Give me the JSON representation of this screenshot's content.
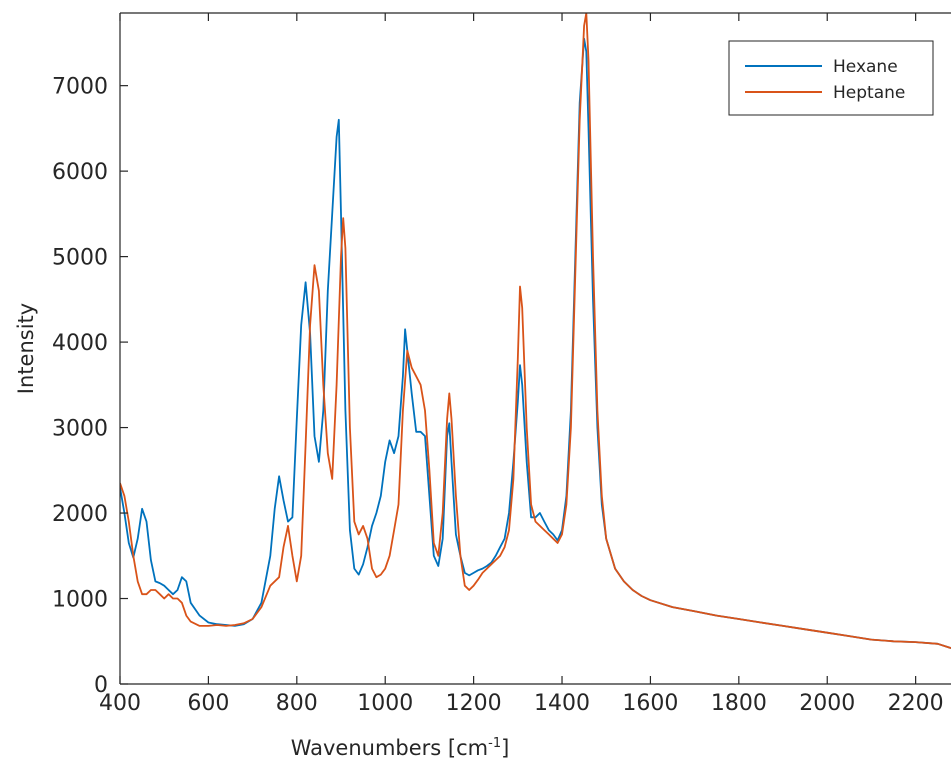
{
  "chart_data": {
    "type": "line",
    "xlabel": "Wavenumbers [cm",
    "xlabel_sup": "-1",
    "xlabel_suffix": "]",
    "ylabel": "Intensity",
    "xlim": [
      400,
      2280
    ],
    "ylim": [
      0,
      7850
    ],
    "xticks": [
      400,
      600,
      800,
      1000,
      1200,
      1400,
      1600,
      1800,
      2000,
      2200
    ],
    "yticks": [
      0,
      1000,
      2000,
      3000,
      4000,
      5000,
      6000,
      7000
    ],
    "grid": false,
    "legend_position": "top-right",
    "series": [
      {
        "name": "Hexane",
        "color": "#0072BD",
        "x": [
          400,
          410,
          420,
          430,
          440,
          450,
          460,
          470,
          480,
          490,
          500,
          510,
          520,
          530,
          540,
          550,
          560,
          580,
          600,
          620,
          640,
          660,
          680,
          700,
          720,
          740,
          750,
          760,
          770,
          780,
          790,
          800,
          810,
          820,
          830,
          840,
          850,
          860,
          870,
          880,
          890,
          895,
          900,
          910,
          920,
          930,
          940,
          950,
          960,
          970,
          980,
          990,
          1000,
          1010,
          1020,
          1030,
          1040,
          1045,
          1050,
          1060,
          1070,
          1080,
          1090,
          1100,
          1110,
          1120,
          1130,
          1140,
          1145,
          1150,
          1160,
          1170,
          1180,
          1190,
          1200,
          1210,
          1220,
          1230,
          1240,
          1250,
          1260,
          1270,
          1280,
          1290,
          1300,
          1305,
          1310,
          1320,
          1330,
          1340,
          1350,
          1360,
          1370,
          1380,
          1390,
          1400,
          1410,
          1420,
          1430,
          1440,
          1450,
          1455,
          1460,
          1470,
          1480,
          1490,
          1500,
          1520,
          1540,
          1560,
          1580,
          1600,
          1650,
          1700,
          1750,
          1800,
          1850,
          1900,
          1950,
          2000,
          2050,
          2100,
          2150,
          2200,
          2250,
          2280
        ],
        "y": [
          2300,
          2000,
          1650,
          1480,
          1700,
          2050,
          1900,
          1450,
          1200,
          1180,
          1150,
          1100,
          1050,
          1100,
          1250,
          1200,
          950,
          800,
          720,
          700,
          690,
          680,
          700,
          760,
          950,
          1500,
          2050,
          2430,
          2150,
          1900,
          1950,
          3100,
          4200,
          4700,
          4100,
          2900,
          2600,
          3200,
          4600,
          5500,
          6400,
          6600,
          5500,
          3200,
          1800,
          1350,
          1280,
          1400,
          1600,
          1850,
          2000,
          2200,
          2600,
          2850,
          2700,
          2900,
          3600,
          4150,
          3900,
          3400,
          2950,
          2950,
          2900,
          2200,
          1500,
          1380,
          1700,
          2900,
          3050,
          2600,
          1750,
          1500,
          1300,
          1270,
          1300,
          1330,
          1350,
          1380,
          1420,
          1500,
          1600,
          1700,
          2000,
          2600,
          3300,
          3730,
          3500,
          2600,
          1950,
          1950,
          2000,
          1900,
          1800,
          1750,
          1680,
          1800,
          2200,
          3200,
          5000,
          6800,
          7550,
          7400,
          6500,
          4500,
          3000,
          2100,
          1700,
          1350,
          1200,
          1100,
          1030,
          980,
          900,
          850,
          800,
          760,
          720,
          680,
          640,
          600,
          560,
          520,
          500,
          490,
          470,
          420
        ]
      },
      {
        "name": "Heptane",
        "color": "#D95319",
        "x": [
          400,
          410,
          420,
          430,
          440,
          450,
          460,
          470,
          480,
          490,
          500,
          510,
          520,
          530,
          540,
          550,
          560,
          580,
          600,
          620,
          640,
          660,
          680,
          700,
          720,
          740,
          760,
          770,
          780,
          790,
          800,
          810,
          820,
          830,
          840,
          850,
          860,
          870,
          880,
          890,
          900,
          905,
          910,
          920,
          930,
          940,
          950,
          960,
          970,
          980,
          990,
          1000,
          1010,
          1020,
          1030,
          1040,
          1050,
          1060,
          1070,
          1080,
          1090,
          1100,
          1110,
          1120,
          1130,
          1140,
          1145,
          1150,
          1160,
          1170,
          1180,
          1190,
          1200,
          1210,
          1220,
          1230,
          1240,
          1250,
          1260,
          1270,
          1280,
          1290,
          1300,
          1305,
          1310,
          1320,
          1330,
          1340,
          1350,
          1360,
          1370,
          1380,
          1390,
          1400,
          1410,
          1420,
          1430,
          1440,
          1450,
          1455,
          1460,
          1470,
          1480,
          1490,
          1500,
          1520,
          1540,
          1560,
          1580,
          1600,
          1650,
          1700,
          1750,
          1800,
          1850,
          1900,
          1950,
          2000,
          2050,
          2100,
          2150,
          2200,
          2250,
          2280
        ],
        "y": [
          2350,
          2200,
          1900,
          1500,
          1200,
          1050,
          1050,
          1100,
          1100,
          1050,
          1000,
          1050,
          1000,
          1000,
          950,
          800,
          730,
          680,
          680,
          690,
          680,
          690,
          710,
          760,
          900,
          1150,
          1250,
          1600,
          1850,
          1500,
          1200,
          1500,
          2800,
          4200,
          4900,
          4600,
          3500,
          2700,
          2400,
          3500,
          5000,
          5450,
          5100,
          3000,
          1900,
          1750,
          1850,
          1700,
          1350,
          1250,
          1280,
          1350,
          1500,
          1800,
          2100,
          3200,
          3900,
          3700,
          3600,
          3500,
          3200,
          2500,
          1650,
          1500,
          2000,
          3100,
          3400,
          3100,
          2200,
          1500,
          1150,
          1100,
          1150,
          1220,
          1300,
          1350,
          1400,
          1450,
          1500,
          1600,
          1800,
          2400,
          3800,
          4650,
          4400,
          3000,
          2100,
          1900,
          1850,
          1800,
          1750,
          1700,
          1650,
          1750,
          2100,
          3000,
          4800,
          6600,
          7700,
          7850,
          7300,
          5000,
          3200,
          2200,
          1700,
          1350,
          1200,
          1100,
          1030,
          980,
          900,
          850,
          800,
          760,
          720,
          680,
          640,
          600,
          560,
          520,
          500,
          490,
          470,
          420
        ]
      }
    ]
  }
}
